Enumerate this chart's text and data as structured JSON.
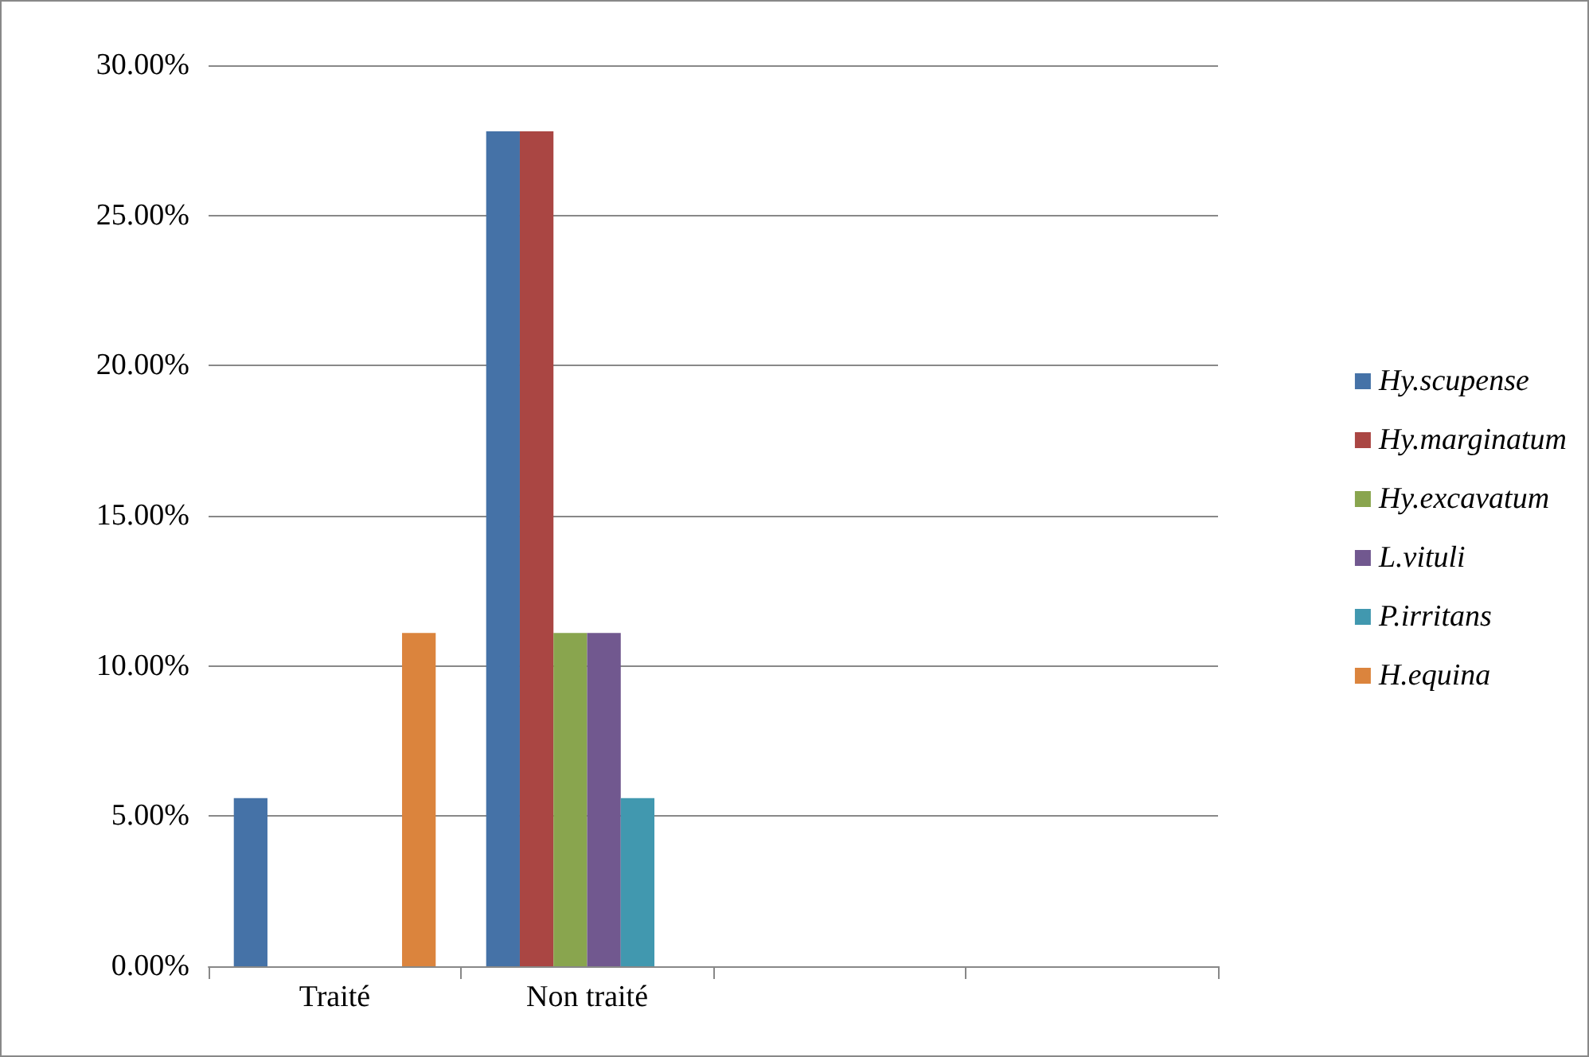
{
  "chart_data": {
    "type": "bar",
    "categories": [
      "Traité",
      "Non traité",
      null,
      null
    ],
    "series": [
      {
        "name": "Hy.scupense",
        "color": "#4572a7",
        "values": [
          5.6,
          27.8,
          null,
          null
        ]
      },
      {
        "name": "Hy.marginatum",
        "color": "#aa4643",
        "values": [
          0,
          27.8,
          null,
          null
        ]
      },
      {
        "name": "Hy.excavatum",
        "color": "#89a54e",
        "values": [
          0,
          11.1,
          null,
          null
        ]
      },
      {
        "name": "L.vituli",
        "color": "#71588f",
        "values": [
          0,
          11.1,
          null,
          null
        ]
      },
      {
        "name": "P.irritans",
        "color": "#4198af",
        "values": [
          0,
          5.6,
          null,
          null
        ]
      },
      {
        "name": "H.equina",
        "color": "#db843d",
        "values": [
          11.1,
          0,
          null,
          null
        ]
      }
    ],
    "ylim": [
      0,
      30
    ],
    "yticks": [
      {
        "value": 0,
        "label": "0.00%"
      },
      {
        "value": 5,
        "label": "5.00%"
      },
      {
        "value": 10,
        "label": "10.00%"
      },
      {
        "value": 15,
        "label": "15.00%"
      },
      {
        "value": 20,
        "label": "20.00%"
      },
      {
        "value": 25,
        "label": "25.00%"
      },
      {
        "value": 30,
        "label": "30.00%"
      }
    ],
    "grid": "y",
    "legend": "right"
  }
}
